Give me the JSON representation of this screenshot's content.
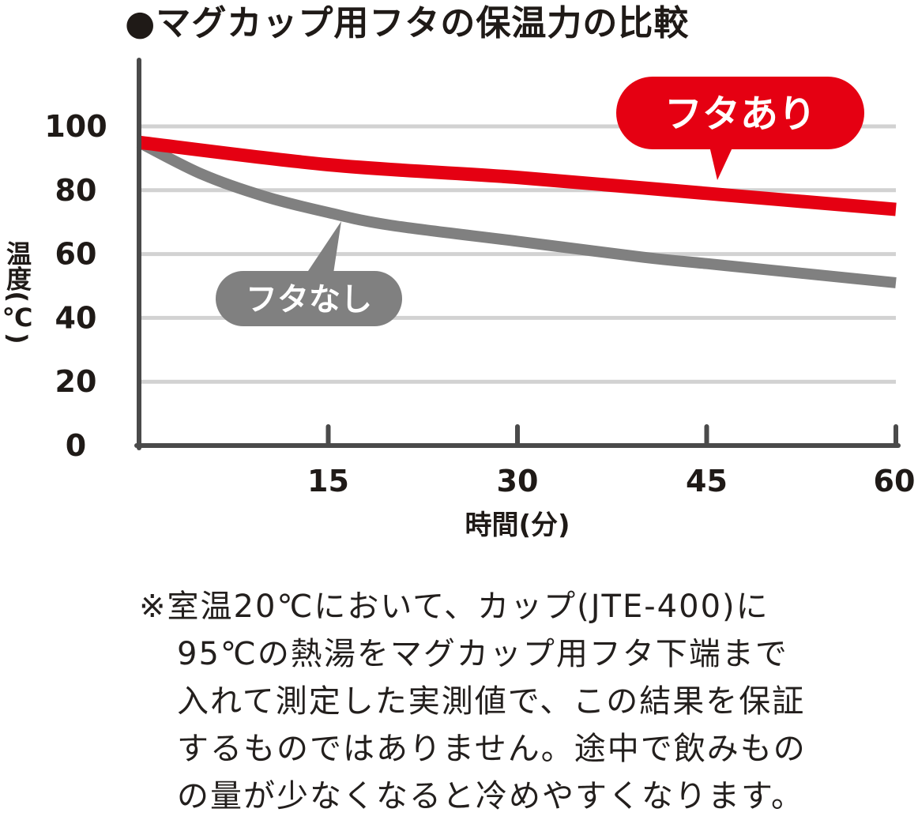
{
  "colors": {
    "with_lid": "#e50012",
    "without_lid": "#808080",
    "axis": "#4a4a4a",
    "grid": "#d2d2d2",
    "text": "#1f1a17"
  },
  "chart_data": {
    "type": "line",
    "title": "●マグカップ用フタの保温力の比較",
    "xlabel": "時間(分)",
    "ylabel": "温度(℃)",
    "xlim": [
      0,
      60
    ],
    "ylim": [
      0,
      100
    ],
    "xticks": [
      15,
      30,
      45,
      60
    ],
    "yticks": [
      0,
      20,
      40,
      60,
      80,
      100
    ],
    "grid": true,
    "series": [
      {
        "name": "フタあり",
        "x": [
          0,
          15,
          30,
          45,
          60
        ],
        "y": [
          95,
          88,
          84,
          79,
          74
        ]
      },
      {
        "name": "フタなし",
        "x": [
          0,
          5,
          10,
          15,
          20,
          30,
          40,
          45,
          50,
          60
        ],
        "y": [
          95,
          85,
          78,
          73,
          69,
          64,
          59,
          57,
          55,
          51
        ]
      }
    ]
  },
  "note": {
    "lines": [
      "※室温20℃において、カップ(JTE-400)に",
      "95℃の熱湯をマグカップ用フタ下端まで",
      "入れて測定した実測値で、この結果を保証",
      "するものではありません。途中で飲みもの",
      "の量が少なくなると冷めやすくなります。"
    ]
  }
}
